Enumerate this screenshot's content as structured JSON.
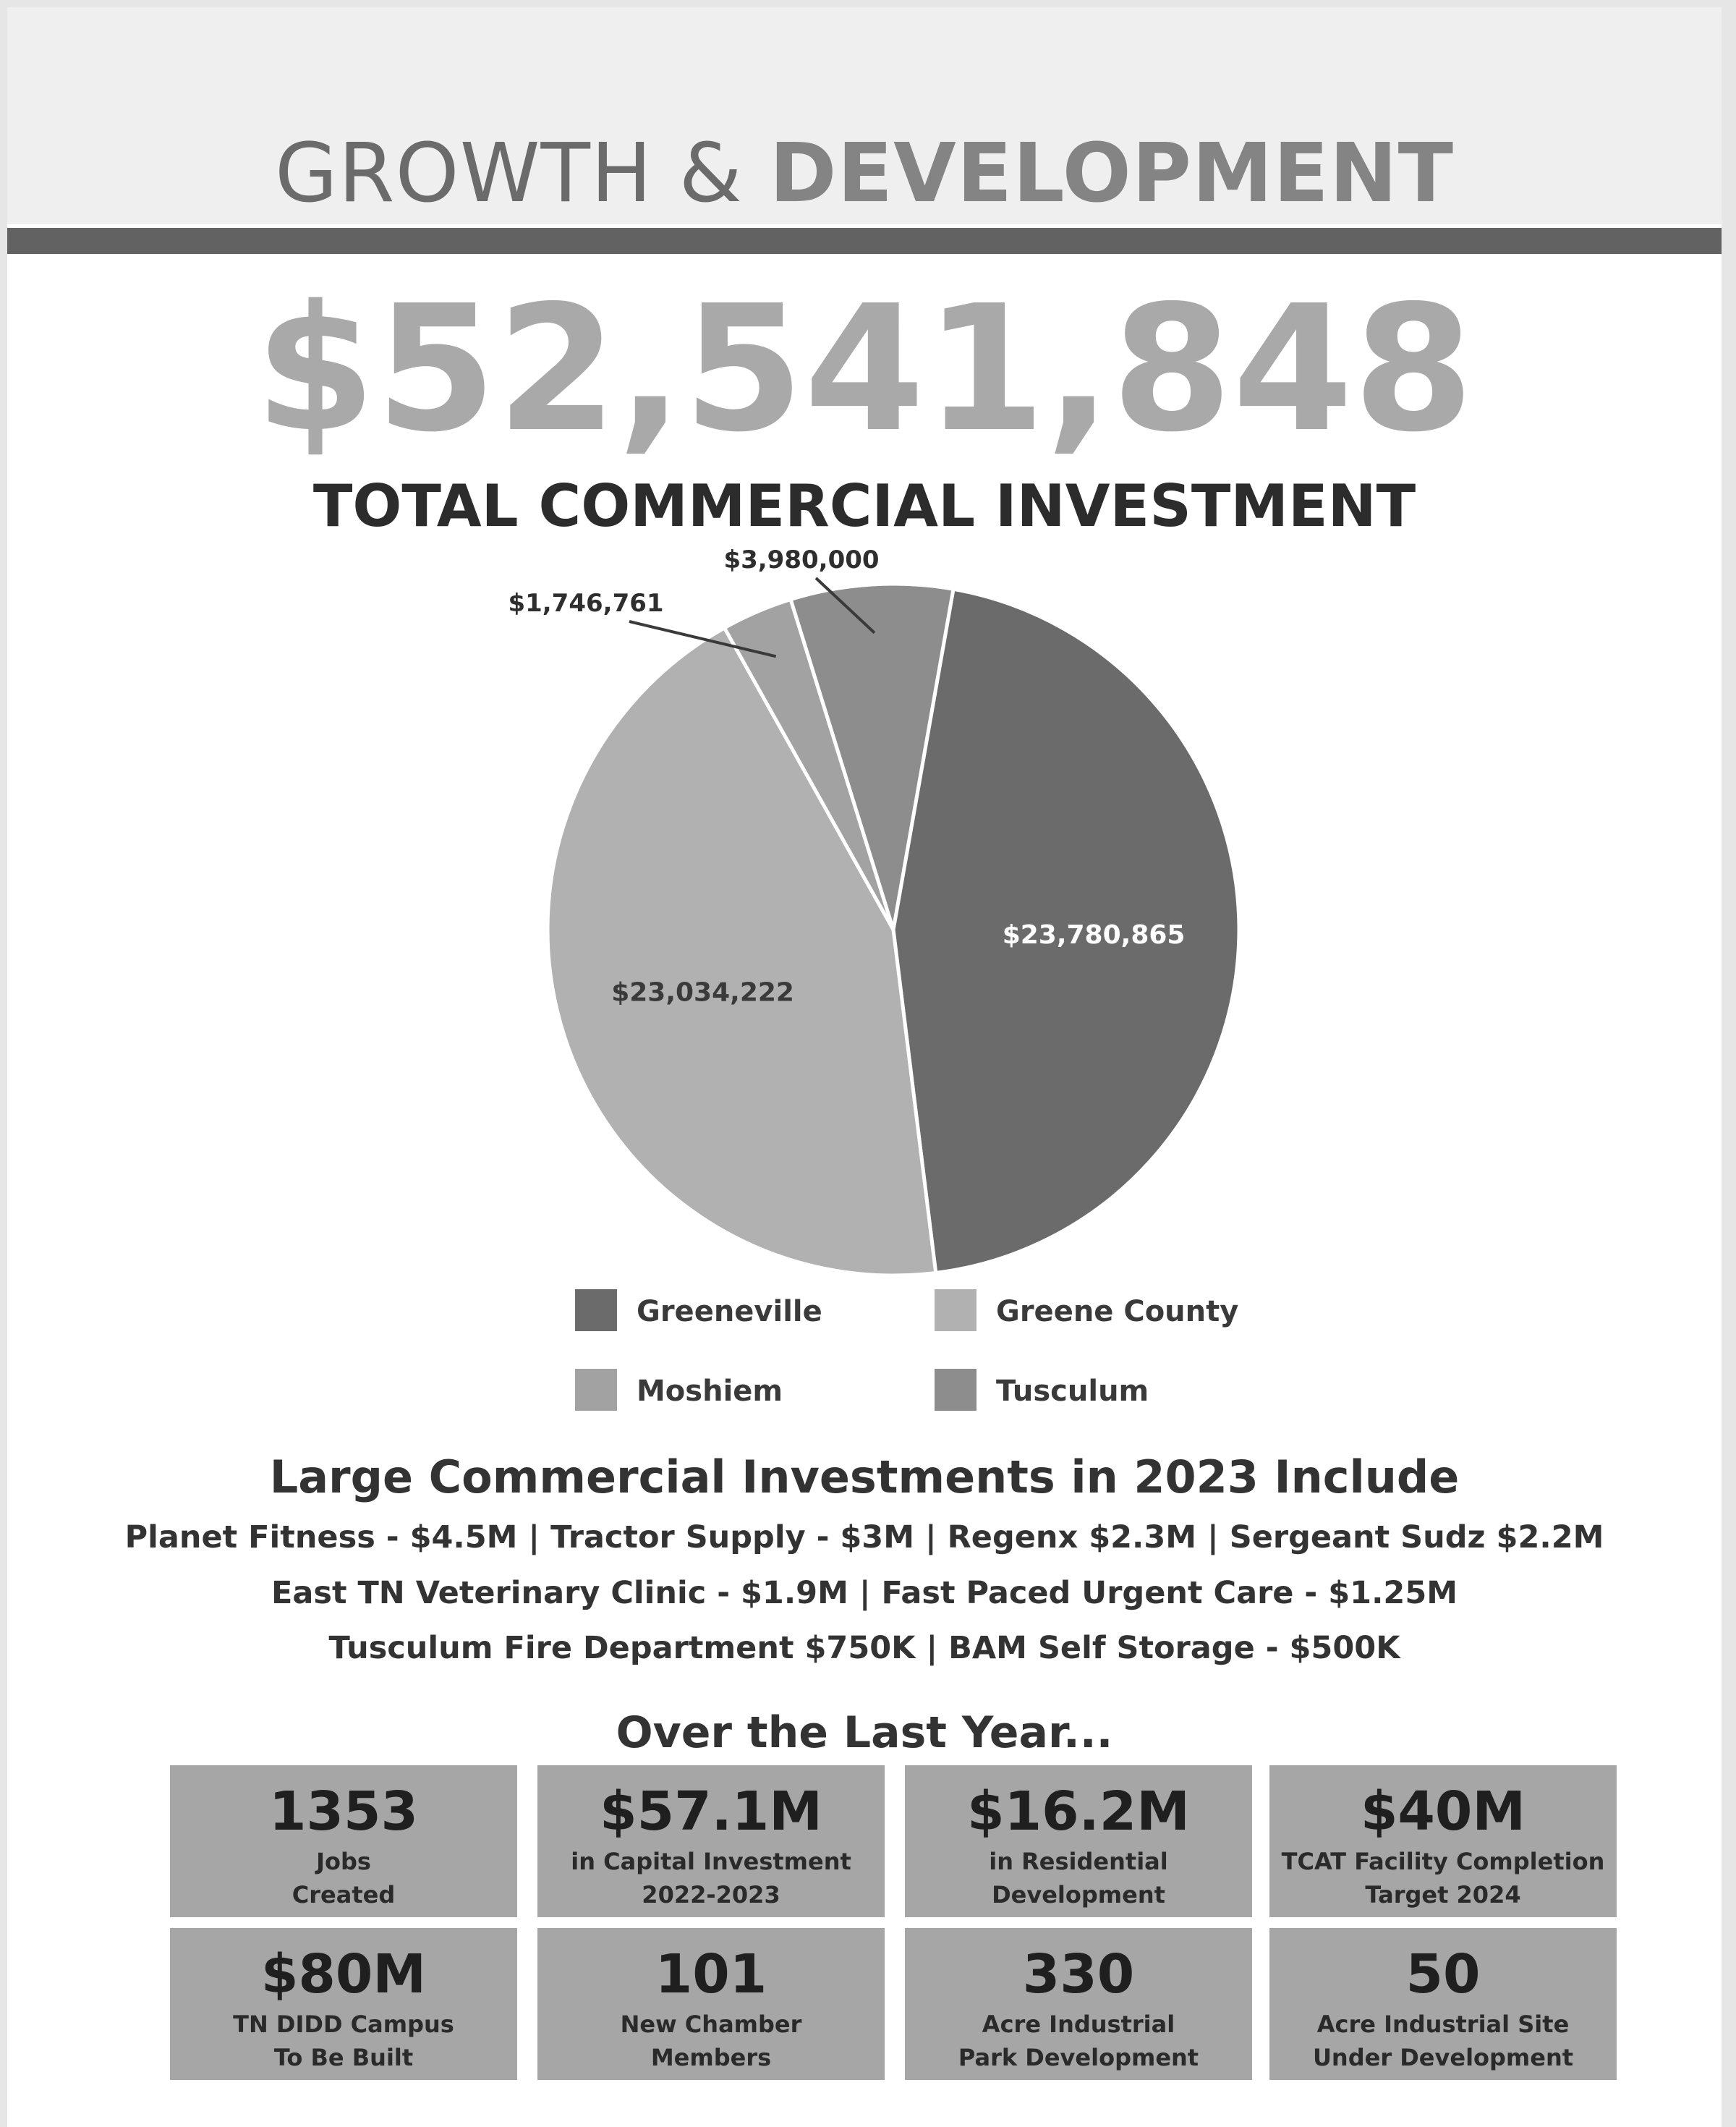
{
  "header": {
    "title_light": "GROWTH & ",
    "title_bold": "DEVELOPMENT"
  },
  "total": {
    "amount": "$52,541,848",
    "label": "TOTAL COMMERCIAL INVESTMENT"
  },
  "chart_data": {
    "type": "pie",
    "title": "",
    "slices": [
      {
        "name": "Greeneville",
        "value": 23780865,
        "label": "$23,780,865",
        "color": "#6b6b6c"
      },
      {
        "name": "Greene County",
        "value": 23034222,
        "label": "$23,034,222",
        "color": "#b1b1b2"
      },
      {
        "name": "Moshiem",
        "value": 1746761,
        "label": "$1,746,761",
        "color": "#a2a2a3"
      },
      {
        "name": "Tusculum",
        "value": 3980000,
        "label": "$3,980,000",
        "color": "#8d8d8e"
      }
    ],
    "legend_placement": "bottom"
  },
  "investments": {
    "heading": "Large Commercial Investments in 2023 Include",
    "lines": [
      "Planet Fitness - $4.5M | Tractor Supply - $3M  | Regenx $2.3M | Sergeant Sudz $2.2M",
      "East TN Veterinary Clinic - $1.9M | Fast Paced Urgent Care - $1.25M",
      "Tusculum Fire Department $750K | BAM Self Storage - $500K"
    ]
  },
  "last_year": {
    "heading": "Over the Last Year...",
    "stats": [
      {
        "value": "1353",
        "desc": "Jobs\nCreated"
      },
      {
        "value": "$57.1M",
        "desc": "in Capital Investment\n2022-2023"
      },
      {
        "value": "$16.2M",
        "desc": "in Residential\nDevelopment"
      },
      {
        "value": "$40M",
        "desc": "TCAT Facility Completion\nTarget 2024"
      },
      {
        "value": "$80M",
        "desc": "TN DIDD Campus\nTo Be Built"
      },
      {
        "value": "101",
        "desc": "New Chamber\nMembers"
      },
      {
        "value": "330",
        "desc": "Acre Industrial\nPark Development"
      },
      {
        "value": "50",
        "desc": "Acre Industrial Site\nUnder Development"
      }
    ]
  }
}
